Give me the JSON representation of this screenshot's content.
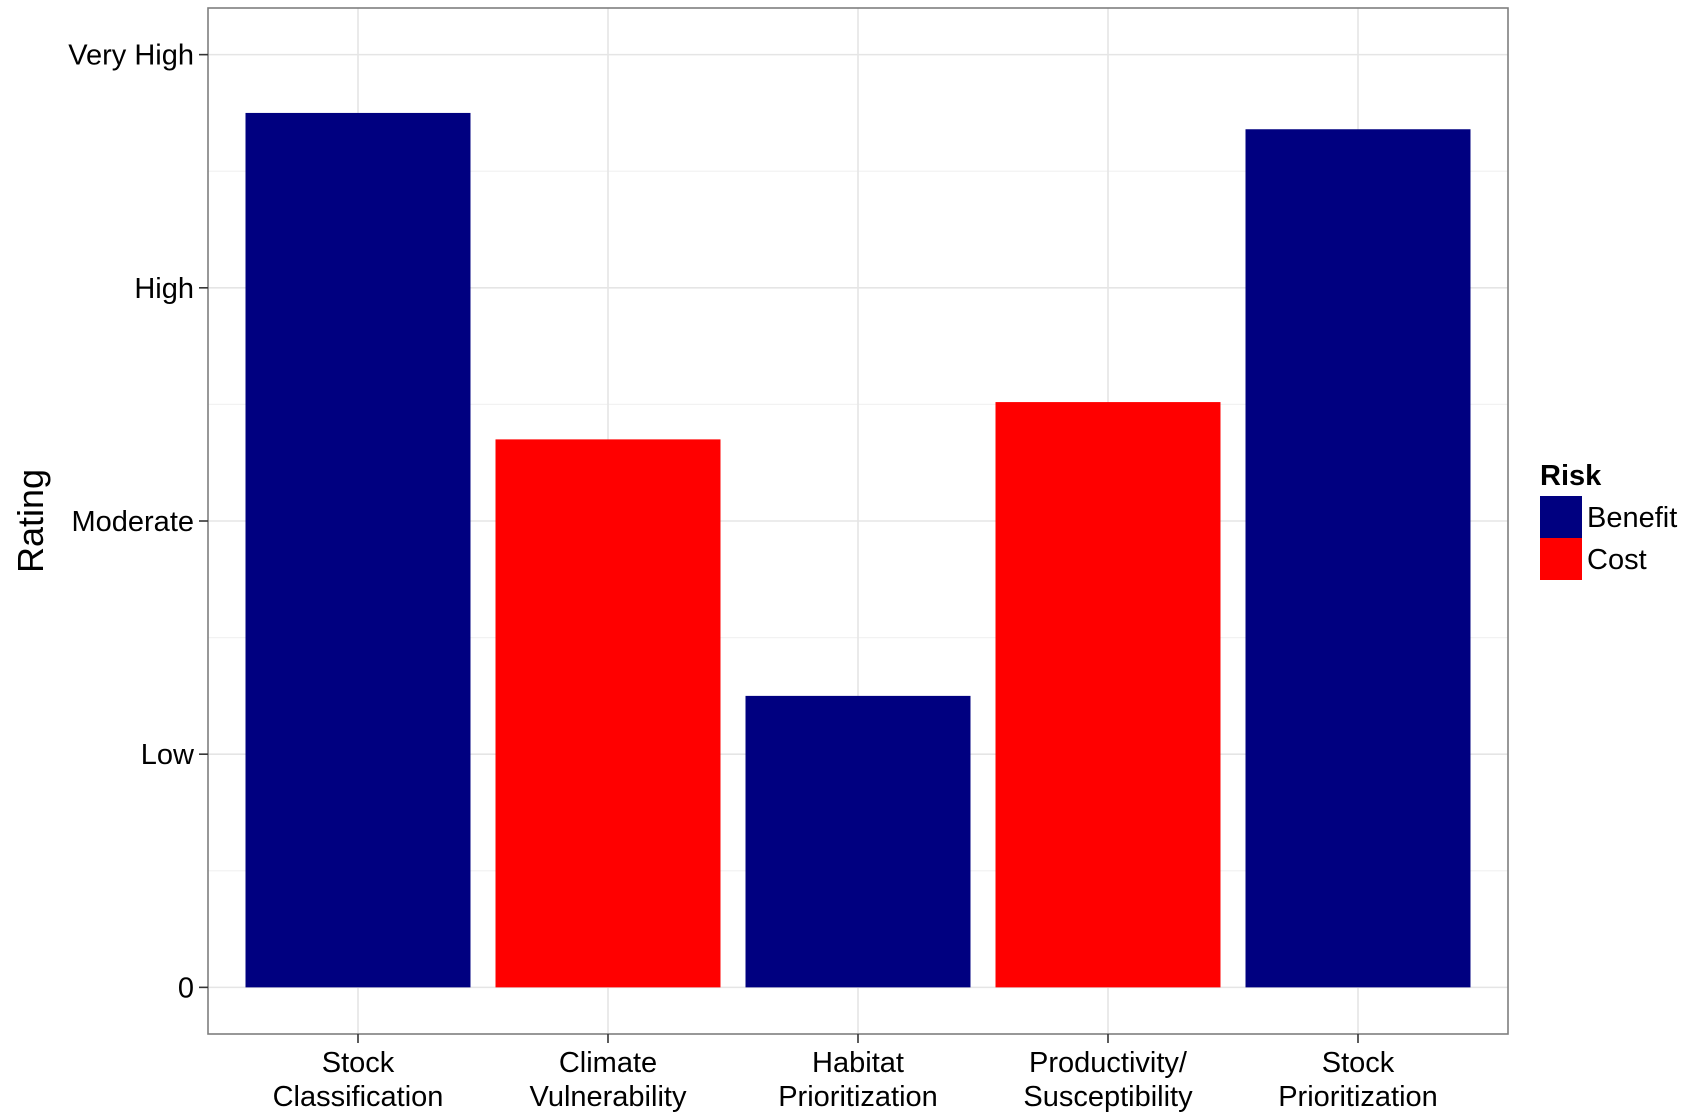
{
  "chart_data": {
    "type": "bar",
    "title": "",
    "xlabel": "",
    "ylabel": "Rating",
    "categories": [
      "Stock\nClassification",
      "Climate\nVulnerability",
      "Habitat\nPrioritization",
      "Productivity/\nSusceptibility",
      "Stock\nPrioritization"
    ],
    "values": [
      3.75,
      2.35,
      1.25,
      2.51,
      3.68
    ],
    "bar_risk": [
      "Benefit",
      "Cost",
      "Benefit",
      "Cost",
      "Benefit"
    ],
    "y_ticks": [
      {
        "value": 0,
        "label": "0"
      },
      {
        "value": 1,
        "label": "Low"
      },
      {
        "value": 2,
        "label": "Moderate"
      },
      {
        "value": 3,
        "label": "High"
      },
      {
        "value": 4,
        "label": "Very High"
      }
    ],
    "ylim": [
      -0.2,
      4.2
    ],
    "grid": true,
    "legend": {
      "title": "Risk",
      "placement": "right",
      "entries": [
        {
          "label": "Benefit",
          "color": "#000080"
        },
        {
          "label": "Cost",
          "color": "#ff0000"
        }
      ]
    }
  }
}
